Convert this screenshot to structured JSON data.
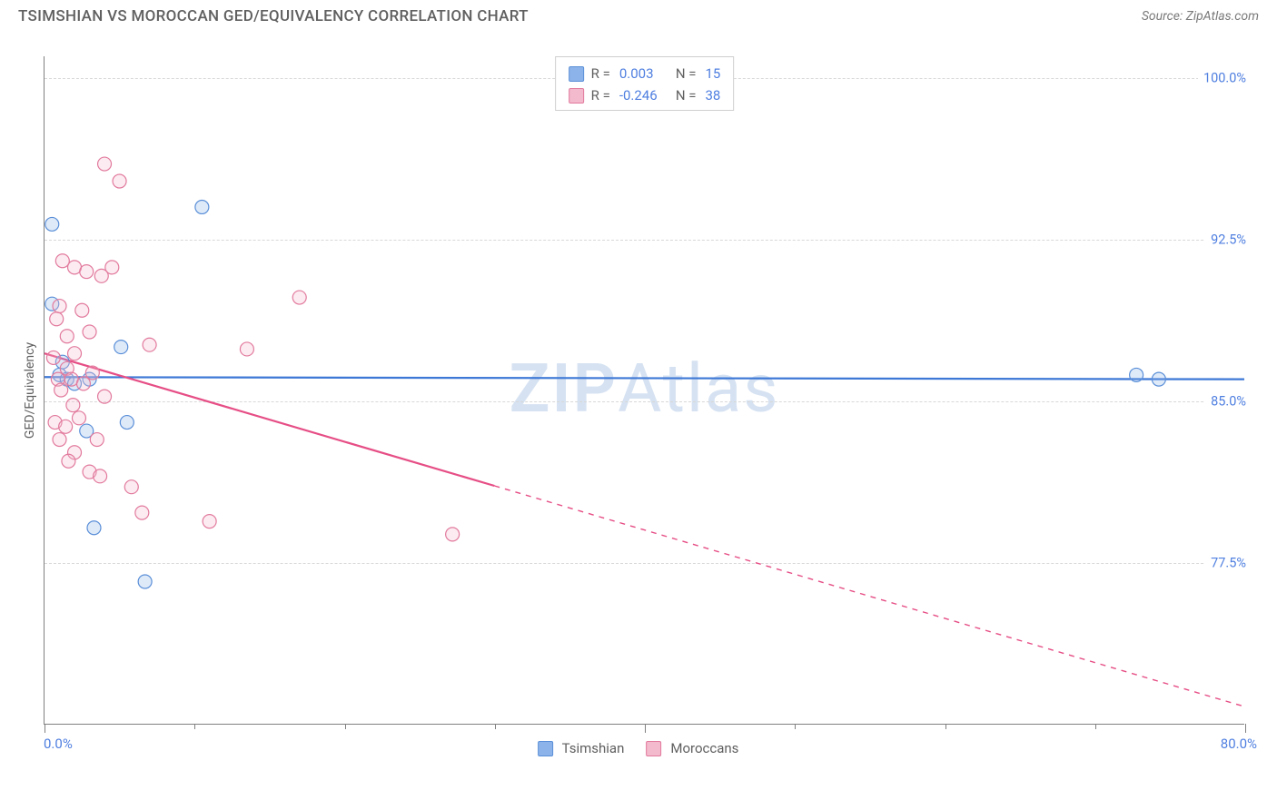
{
  "header": {
    "title": "TSIMSHIAN VS MOROCCAN GED/EQUIVALENCY CORRELATION CHART",
    "source": "Source: ZipAtlas.com"
  },
  "watermark": {
    "zip": "ZIP",
    "atlas": "Atlas"
  },
  "chart": {
    "type": "scatter",
    "y_axis_label": "GED/Equivalency",
    "background_color": "#ffffff",
    "grid_color": "#d8d8d8",
    "axis_color": "#808080",
    "value_text_color": "#4f7fe0",
    "label_text_color": "#606060",
    "xlim": [
      0,
      80
    ],
    "ylim": [
      70,
      101
    ],
    "x_ticks_major": [
      0,
      40,
      80
    ],
    "x_ticks_minor": [
      10,
      20,
      30,
      50,
      60,
      70
    ],
    "x_min_label": "0.0%",
    "x_max_label": "80.0%",
    "y_gridlines": [
      {
        "value": 100.0,
        "label": "100.0%"
      },
      {
        "value": 92.5,
        "label": "92.5%"
      },
      {
        "value": 85.0,
        "label": "85.0%"
      },
      {
        "value": 77.5,
        "label": "77.5%"
      }
    ],
    "marker_radius": 7.5,
    "marker_stroke_width": 1.2,
    "marker_fill_opacity": 0.28,
    "trend_line_width": 2.2,
    "series": [
      {
        "key": "tsimshian",
        "name": "Tsimshian",
        "color": "#8db4ea",
        "stroke": "#5a8fd8",
        "trend_color": "#3d78d6",
        "R": "0.003",
        "N": "15",
        "trend": {
          "y_at_x0": 86.1,
          "y_at_x80": 86.0,
          "solid_until_x": 80
        },
        "points": [
          {
            "x": 0.5,
            "y": 93.2
          },
          {
            "x": 0.5,
            "y": 89.5
          },
          {
            "x": 1.2,
            "y": 86.8
          },
          {
            "x": 1.0,
            "y": 86.2
          },
          {
            "x": 1.5,
            "y": 86.0
          },
          {
            "x": 2.0,
            "y": 85.8
          },
          {
            "x": 3.0,
            "y": 86.0
          },
          {
            "x": 2.8,
            "y": 83.6
          },
          {
            "x": 5.5,
            "y": 84.0
          },
          {
            "x": 5.1,
            "y": 87.5
          },
          {
            "x": 3.3,
            "y": 79.1
          },
          {
            "x": 6.7,
            "y": 76.6
          },
          {
            "x": 10.5,
            "y": 94.0
          },
          {
            "x": 72.8,
            "y": 86.2
          },
          {
            "x": 74.3,
            "y": 86.0
          }
        ]
      },
      {
        "key": "moroccans",
        "name": "Moroccans",
        "color": "#f3b9cc",
        "stroke": "#e27a9d",
        "trend_color": "#e64e85",
        "R": "-0.246",
        "N": "38",
        "trend": {
          "y_at_x0": 87.2,
          "y_at_x80": 70.8,
          "solid_until_x": 30
        },
        "points": [
          {
            "x": 4.0,
            "y": 96.0
          },
          {
            "x": 5.0,
            "y": 95.2
          },
          {
            "x": 1.2,
            "y": 91.5
          },
          {
            "x": 2.0,
            "y": 91.2
          },
          {
            "x": 2.8,
            "y": 91.0
          },
          {
            "x": 4.5,
            "y": 91.2
          },
          {
            "x": 3.8,
            "y": 90.8
          },
          {
            "x": 1.0,
            "y": 89.4
          },
          {
            "x": 2.5,
            "y": 89.2
          },
          {
            "x": 0.8,
            "y": 88.8
          },
          {
            "x": 3.0,
            "y": 88.2
          },
          {
            "x": 1.5,
            "y": 88.0
          },
          {
            "x": 7.0,
            "y": 87.6
          },
          {
            "x": 2.0,
            "y": 87.2
          },
          {
            "x": 0.6,
            "y": 87.0
          },
          {
            "x": 1.5,
            "y": 86.5
          },
          {
            "x": 3.2,
            "y": 86.3
          },
          {
            "x": 1.8,
            "y": 86.0
          },
          {
            "x": 0.9,
            "y": 86.0
          },
          {
            "x": 2.6,
            "y": 85.8
          },
          {
            "x": 1.1,
            "y": 85.5
          },
          {
            "x": 4.0,
            "y": 85.2
          },
          {
            "x": 1.9,
            "y": 84.8
          },
          {
            "x": 2.3,
            "y": 84.2
          },
          {
            "x": 0.7,
            "y": 84.0
          },
          {
            "x": 1.4,
            "y": 83.8
          },
          {
            "x": 3.5,
            "y": 83.2
          },
          {
            "x": 1.0,
            "y": 83.2
          },
          {
            "x": 2.0,
            "y": 82.6
          },
          {
            "x": 1.6,
            "y": 82.2
          },
          {
            "x": 3.0,
            "y": 81.7
          },
          {
            "x": 3.7,
            "y": 81.5
          },
          {
            "x": 5.8,
            "y": 81.0
          },
          {
            "x": 13.5,
            "y": 87.4
          },
          {
            "x": 17.0,
            "y": 89.8
          },
          {
            "x": 11.0,
            "y": 79.4
          },
          {
            "x": 27.2,
            "y": 78.8
          },
          {
            "x": 6.5,
            "y": 79.8
          }
        ]
      }
    ],
    "legend_top": {
      "rows": [
        {
          "swatch_series": "tsimshian",
          "r_label": "R =",
          "n_label": "N ="
        },
        {
          "swatch_series": "moroccans",
          "r_label": "R =",
          "n_label": "N ="
        }
      ]
    },
    "legend_bottom": {
      "items": [
        {
          "series": "tsimshian"
        },
        {
          "series": "moroccans"
        }
      ]
    }
  }
}
